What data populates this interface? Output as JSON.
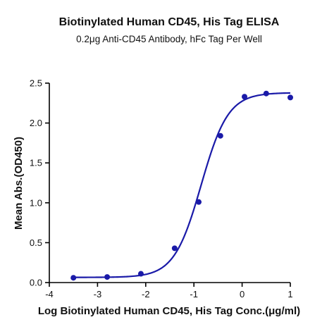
{
  "chart_data": {
    "type": "scatter",
    "title": "Biotinylated Human CD45, His Tag ELISA",
    "subtitle": "0.2μg Anti-CD45 Antibody, hFc Tag Per Well",
    "xlabel": "Log Biotinylated Human CD45, His Tag Conc.(μg/ml)",
    "ylabel": "Mean Abs.(OD450)",
    "xlim": [
      -4,
      1
    ],
    "ylim": [
      0,
      2.5
    ],
    "xticks": [
      -4,
      -3,
      -2,
      -1,
      0,
      1
    ],
    "yticks": [
      0.0,
      0.5,
      1.0,
      1.5,
      2.0,
      2.5
    ],
    "xtick_labels": [
      "-4",
      "-3",
      "-2",
      "-1",
      "0",
      "1"
    ],
    "ytick_labels": [
      "0.0",
      "0.5",
      "1.0",
      "1.5",
      "2.0",
      "2.5"
    ],
    "grid": false,
    "series": [
      {
        "x": [
          -3.5,
          -2.8,
          -2.1,
          -1.4,
          -0.9,
          -0.45,
          0.05,
          0.5,
          1.0
        ],
        "y": [
          0.06,
          0.07,
          0.11,
          0.43,
          1.01,
          1.84,
          2.33,
          2.37,
          2.32
        ],
        "color": "#1a1aa8",
        "marker": "circle",
        "fit": "four-parameter-logistic"
      }
    ],
    "fit_params": {
      "bottom": 0.065,
      "top": 2.38,
      "log_ec50": -0.85,
      "hill_slope": 1.55
    }
  }
}
